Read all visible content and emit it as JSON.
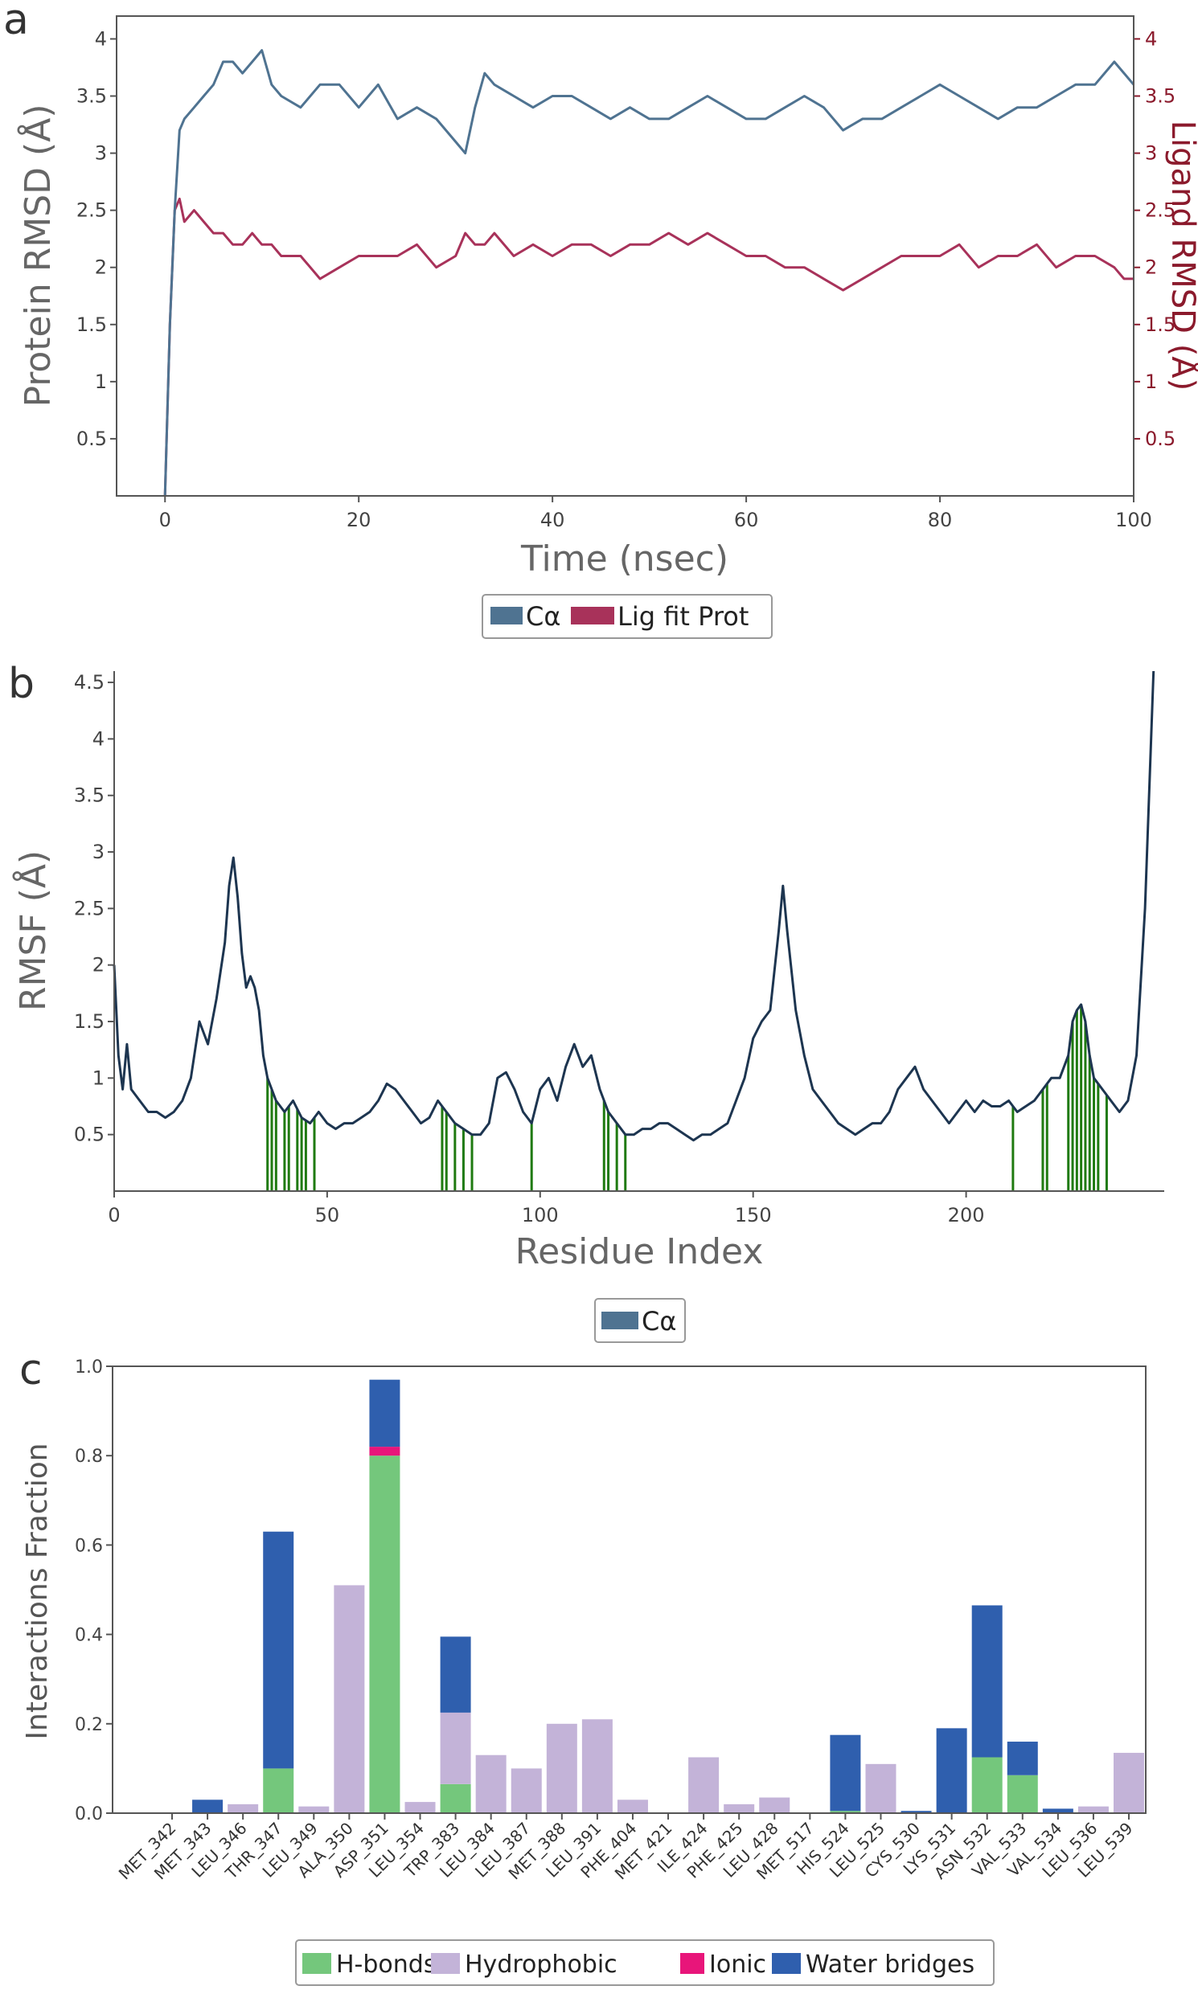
{
  "panels": {
    "a": "a",
    "b": "b",
    "c": "c"
  },
  "colors": {
    "ca": "#4f7391",
    "ligand": "#a8325a",
    "contacts": "#1f7a10",
    "hbonds": "#74c77c",
    "hydrophobic": "#c3b3d8",
    "ionic": "#e8157a",
    "water": "#2f5fae",
    "right_axis": "#8b1a2c"
  },
  "chart_data": [
    {
      "id": "a",
      "type": "line",
      "xlabel": "Time (nsec)",
      "ylabel": "Protein RMSD (Å)",
      "ylabel_right": "Ligand RMSD (Å)",
      "xlim": [
        -5,
        100
      ],
      "ylim": [
        0,
        4.2
      ],
      "xticks": [
        0,
        20,
        40,
        60,
        80,
        100
      ],
      "yticks": [
        0.5,
        1.0,
        1.5,
        2.0,
        2.5,
        3.0,
        3.5,
        4.0
      ],
      "yticks_right": [
        0.5,
        1.0,
        1.5,
        2.0,
        2.5,
        3.0,
        3.5,
        4.0
      ],
      "x": [
        0,
        0.5,
        1,
        1.5,
        2,
        3,
        4,
        5,
        6,
        7,
        8,
        9,
        10,
        11,
        12,
        14,
        16,
        18,
        20,
        22,
        24,
        26,
        28,
        30,
        31,
        32,
        33,
        34,
        36,
        38,
        40,
        42,
        44,
        46,
        48,
        50,
        52,
        54,
        56,
        58,
        60,
        62,
        64,
        66,
        68,
        70,
        72,
        74,
        76,
        78,
        80,
        82,
        84,
        86,
        88,
        90,
        92,
        94,
        96,
        98,
        99,
        100
      ],
      "series": [
        {
          "name": "Cα",
          "values": [
            0.0,
            1.5,
            2.5,
            3.2,
            3.3,
            3.4,
            3.5,
            3.6,
            3.8,
            3.8,
            3.7,
            3.8,
            3.9,
            3.6,
            3.5,
            3.4,
            3.6,
            3.6,
            3.4,
            3.6,
            3.3,
            3.4,
            3.3,
            3.1,
            3.0,
            3.4,
            3.7,
            3.6,
            3.5,
            3.4,
            3.5,
            3.5,
            3.4,
            3.3,
            3.4,
            3.3,
            3.3,
            3.4,
            3.5,
            3.4,
            3.3,
            3.3,
            3.4,
            3.5,
            3.4,
            3.2,
            3.3,
            3.3,
            3.4,
            3.5,
            3.6,
            3.5,
            3.4,
            3.3,
            3.4,
            3.4,
            3.5,
            3.6,
            3.6,
            3.8,
            3.7,
            3.6
          ]
        },
        {
          "name": "Lig fit Prot",
          "values": [
            0.0,
            1.5,
            2.5,
            2.6,
            2.4,
            2.5,
            2.4,
            2.3,
            2.3,
            2.2,
            2.2,
            2.3,
            2.2,
            2.2,
            2.1,
            2.1,
            1.9,
            2.0,
            2.1,
            2.1,
            2.1,
            2.2,
            2.0,
            2.1,
            2.3,
            2.2,
            2.2,
            2.3,
            2.1,
            2.2,
            2.1,
            2.2,
            2.2,
            2.1,
            2.2,
            2.2,
            2.3,
            2.2,
            2.3,
            2.2,
            2.1,
            2.1,
            2.0,
            2.0,
            1.9,
            1.8,
            1.9,
            2.0,
            2.1,
            2.1,
            2.1,
            2.2,
            2.0,
            2.1,
            2.1,
            2.2,
            2.0,
            2.1,
            2.1,
            2.0,
            1.9,
            1.9
          ]
        }
      ],
      "legend": [
        "Cα",
        "Lig fit Prot"
      ],
      "legend_position": "bottom"
    },
    {
      "id": "b",
      "type": "line",
      "xlabel": "Residue Index",
      "ylabel": "RMSF (Å)",
      "xlim": [
        0,
        245
      ],
      "ylim": [
        0,
        4.6
      ],
      "xticks": [
        0,
        50,
        100,
        150,
        200
      ],
      "yticks": [
        0.5,
        1.0,
        1.5,
        2.0,
        2.5,
        3.0,
        3.5,
        4.0,
        4.5
      ],
      "x": [
        0,
        1,
        2,
        3,
        4,
        6,
        8,
        10,
        12,
        14,
        16,
        18,
        20,
        22,
        24,
        26,
        27,
        28,
        29,
        30,
        31,
        32,
        33,
        34,
        35,
        36,
        38,
        40,
        42,
        44,
        46,
        48,
        50,
        52,
        54,
        56,
        58,
        60,
        62,
        64,
        66,
        68,
        70,
        72,
        74,
        76,
        78,
        80,
        82,
        84,
        86,
        88,
        90,
        92,
        94,
        96,
        98,
        100,
        102,
        104,
        106,
        108,
        110,
        112,
        114,
        116,
        118,
        120,
        122,
        124,
        126,
        128,
        130,
        132,
        134,
        136,
        138,
        140,
        142,
        144,
        146,
        148,
        150,
        152,
        154,
        156,
        157,
        158,
        160,
        162,
        164,
        166,
        168,
        170,
        172,
        174,
        176,
        178,
        180,
        182,
        184,
        186,
        188,
        190,
        192,
        194,
        196,
        198,
        200,
        202,
        204,
        206,
        208,
        210,
        212,
        214,
        216,
        218,
        220,
        222,
        224,
        225,
        226,
        227,
        228,
        229,
        230,
        232,
        234,
        236,
        238,
        240,
        242,
        244
      ],
      "series": [
        {
          "name": "Cα",
          "values": [
            2.0,
            1.2,
            0.9,
            1.3,
            0.9,
            0.8,
            0.7,
            0.7,
            0.65,
            0.7,
            0.8,
            1.0,
            1.5,
            1.3,
            1.7,
            2.2,
            2.7,
            2.95,
            2.6,
            2.1,
            1.8,
            1.9,
            1.8,
            1.6,
            1.2,
            1.0,
            0.8,
            0.7,
            0.8,
            0.65,
            0.6,
            0.7,
            0.6,
            0.55,
            0.6,
            0.6,
            0.65,
            0.7,
            0.8,
            0.95,
            0.9,
            0.8,
            0.7,
            0.6,
            0.65,
            0.8,
            0.7,
            0.6,
            0.55,
            0.5,
            0.5,
            0.6,
            1.0,
            1.05,
            0.9,
            0.7,
            0.6,
            0.9,
            1.0,
            0.8,
            1.1,
            1.3,
            1.1,
            1.2,
            0.9,
            0.7,
            0.6,
            0.5,
            0.5,
            0.55,
            0.55,
            0.6,
            0.6,
            0.55,
            0.5,
            0.45,
            0.5,
            0.5,
            0.55,
            0.6,
            0.8,
            1.0,
            1.35,
            1.5,
            1.6,
            2.3,
            2.7,
            2.3,
            1.6,
            1.2,
            0.9,
            0.8,
            0.7,
            0.6,
            0.55,
            0.5,
            0.55,
            0.6,
            0.6,
            0.7,
            0.9,
            1.0,
            1.1,
            0.9,
            0.8,
            0.7,
            0.6,
            0.7,
            0.8,
            0.7,
            0.8,
            0.75,
            0.75,
            0.8,
            0.7,
            0.75,
            0.8,
            0.9,
            1.0,
            1.0,
            1.2,
            1.5,
            1.6,
            1.65,
            1.5,
            1.2,
            1.0,
            0.9,
            0.8,
            0.7,
            0.8,
            1.2,
            2.5,
            4.6
          ]
        }
      ],
      "contacts": [
        36,
        37,
        38,
        40,
        41,
        43,
        44,
        45,
        47,
        77,
        78,
        80,
        82,
        84,
        98,
        115,
        116,
        118,
        120,
        211,
        218,
        219,
        224,
        225,
        226,
        227,
        228,
        229,
        230,
        231,
        233
      ],
      "legend": [
        "Cα"
      ],
      "legend_position": "bottom"
    },
    {
      "id": "c",
      "type": "bar",
      "ylabel": "Interactions Fraction",
      "ylim": [
        0,
        1.0
      ],
      "yticks": [
        0.0,
        0.2,
        0.4,
        0.6,
        0.8,
        1.0
      ],
      "categories": [
        "MET_342",
        "MET_343",
        "LEU_346",
        "THR_347",
        "LEU_349",
        "ALA_350",
        "ASP_351",
        "LEU_354",
        "TRP_383",
        "LEU_384",
        "LEU_387",
        "MET_388",
        "LEU_391",
        "PHE_404",
        "MET_421",
        "ILE_424",
        "PHE_425",
        "LEU_428",
        "MET_517",
        "HIS_524",
        "LEU_525",
        "CYS_530",
        "LYS_531",
        "ASN_532",
        "VAL_533",
        "VAL_534",
        "LEU_536",
        "LEU_539"
      ],
      "series": [
        {
          "name": "H-bonds",
          "values": [
            0,
            0,
            0,
            0.1,
            0,
            0,
            0.8,
            0,
            0.065,
            0,
            0,
            0,
            0,
            0,
            0,
            0,
            0,
            0,
            0,
            0.005,
            0,
            0,
            0,
            0.125,
            0.085,
            0,
            0,
            0
          ]
        },
        {
          "name": "Hydrophobic",
          "values": [
            0,
            0,
            0.02,
            0,
            0.015,
            0.51,
            0,
            0.025,
            0.16,
            0.13,
            0.1,
            0.2,
            0.21,
            0.03,
            0,
            0.125,
            0.02,
            0.035,
            0,
            0,
            0.11,
            0,
            0,
            0,
            0,
            0,
            0.015,
            0.135
          ]
        },
        {
          "name": "Ionic",
          "values": [
            0,
            0,
            0,
            0,
            0,
            0,
            0.02,
            0,
            0,
            0,
            0,
            0,
            0,
            0,
            0,
            0,
            0,
            0,
            0,
            0,
            0,
            0,
            0,
            0,
            0,
            0,
            0,
            0
          ]
        },
        {
          "name": "Water bridges",
          "values": [
            0,
            0.03,
            0,
            0.53,
            0,
            0,
            0.15,
            0,
            0.17,
            0,
            0,
            0,
            0,
            0,
            0,
            0,
            0,
            0,
            0,
            0.17,
            0,
            0.005,
            0.19,
            0.34,
            0.075,
            0.01,
            0,
            0
          ]
        }
      ],
      "legend": [
        "H-bonds",
        "Hydrophobic",
        "Ionic",
        "Water bridges"
      ],
      "legend_position": "bottom"
    }
  ]
}
